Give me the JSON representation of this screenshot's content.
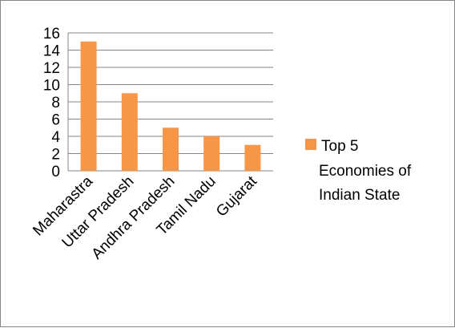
{
  "chart_data": {
    "type": "bar",
    "categories": [
      "Maharastra",
      "Uttar Pradesh",
      "Andhra Pradesh",
      "Tamil Nadu",
      "Gujarat"
    ],
    "series": [
      {
        "name": "Top 5 Economies of Indian State",
        "values": [
          15,
          9,
          5,
          4,
          3
        ]
      }
    ],
    "ylim": [
      0,
      16
    ],
    "yticks": [
      0,
      2,
      4,
      6,
      8,
      10,
      12,
      14,
      16
    ],
    "grid": true,
    "legend_position": "right",
    "title": "",
    "xlabel": "",
    "ylabel": ""
  },
  "legend": {
    "lines": [
      "Top 5",
      "Economies of",
      "Indian State"
    ]
  },
  "colors": {
    "bar": "#F79646",
    "grid": "#868686",
    "axis": "#868686",
    "frame": "#868686"
  }
}
